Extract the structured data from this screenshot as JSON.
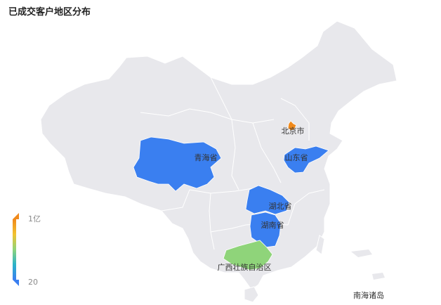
{
  "chart_data": {
    "type": "map",
    "title": "已成交客户地区分布",
    "regions": [
      {
        "name": "北京市",
        "value": 100000000
      },
      {
        "name": "青海省",
        "value": 20
      },
      {
        "name": "山东省",
        "value": 20
      },
      {
        "name": "湖北省",
        "value": 20
      },
      {
        "name": "湖南省",
        "value": 20
      },
      {
        "name": "广西壮族自治区",
        "value": 50000000
      }
    ],
    "visual_map": {
      "min": 20,
      "max": 100000000,
      "max_label": "1亿",
      "min_label": "20",
      "colors": [
        "#3a7ff0",
        "#2bb3c9",
        "#8fd47a",
        "#f2c230",
        "#f08a1c"
      ]
    },
    "other_labels": {
      "south_sea": "南海诸岛"
    },
    "colors": {
      "base_region": "#e8e8ec",
      "border": "#ffffff"
    }
  }
}
